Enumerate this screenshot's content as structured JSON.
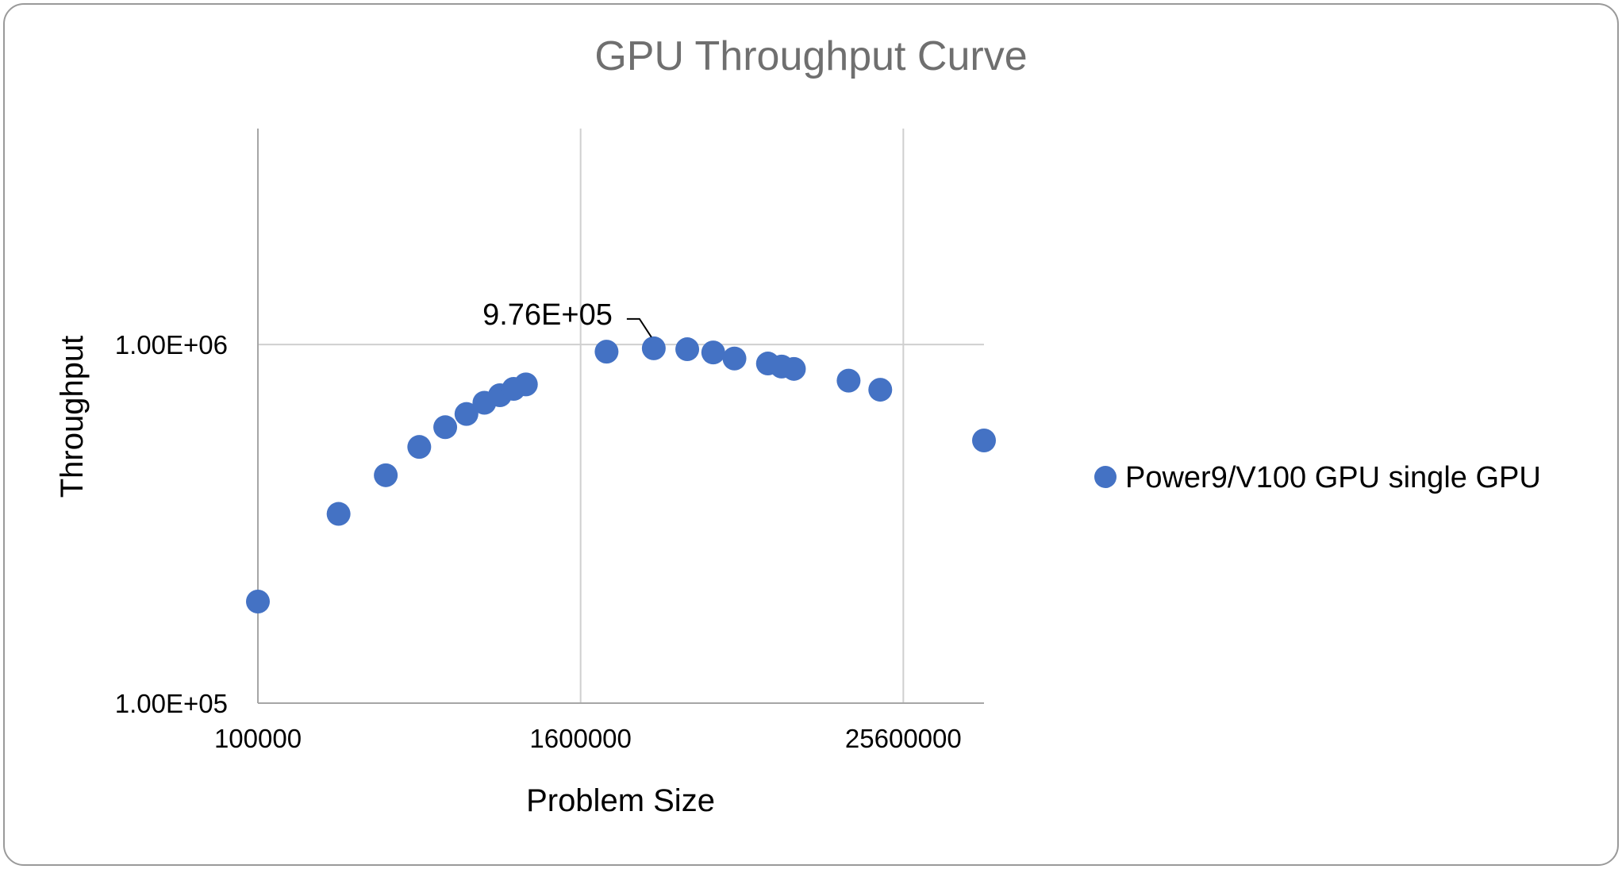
{
  "chart_data": {
    "type": "scatter",
    "title": "GPU Throughput Curve",
    "xlabel": "Problem Size",
    "ylabel": "Throughput",
    "x_scale": "log",
    "y_scale": "log",
    "xlim": [
      100000,
      51200000
    ],
    "ylim": [
      100000,
      4000000
    ],
    "x_ticks": [
      100000,
      1600000,
      25600000
    ],
    "x_tick_labels": [
      "100000",
      "1600000",
      "25600000"
    ],
    "y_ticks": [
      100000,
      1000000
    ],
    "y_tick_labels": [
      "1.00E+05",
      "1.00E+06"
    ],
    "grid": true,
    "legend_position": "right",
    "series": [
      {
        "name": "Power9/V100 GPU single GPU",
        "color": "#4472c4",
        "points": [
          {
            "x": 100000,
            "y": 192000
          },
          {
            "x": 200000,
            "y": 337000
          },
          {
            "x": 300000,
            "y": 432000
          },
          {
            "x": 400000,
            "y": 518000
          },
          {
            "x": 500000,
            "y": 588000
          },
          {
            "x": 600000,
            "y": 640000
          },
          {
            "x": 700000,
            "y": 688000
          },
          {
            "x": 800000,
            "y": 722000
          },
          {
            "x": 900000,
            "y": 752000
          },
          {
            "x": 1000000,
            "y": 774000
          },
          {
            "x": 2000000,
            "y": 955000
          },
          {
            "x": 3000000,
            "y": 976000,
            "label": "9.76E+05"
          },
          {
            "x": 4000000,
            "y": 970000
          },
          {
            "x": 5000000,
            "y": 950000
          },
          {
            "x": 6000000,
            "y": 914000
          },
          {
            "x": 8000000,
            "y": 885000
          },
          {
            "x": 9000000,
            "y": 868000
          },
          {
            "x": 10000000,
            "y": 855000
          },
          {
            "x": 16000000,
            "y": 793000
          },
          {
            "x": 21000000,
            "y": 748000
          },
          {
            "x": 51200000,
            "y": 540000
          }
        ]
      }
    ]
  }
}
